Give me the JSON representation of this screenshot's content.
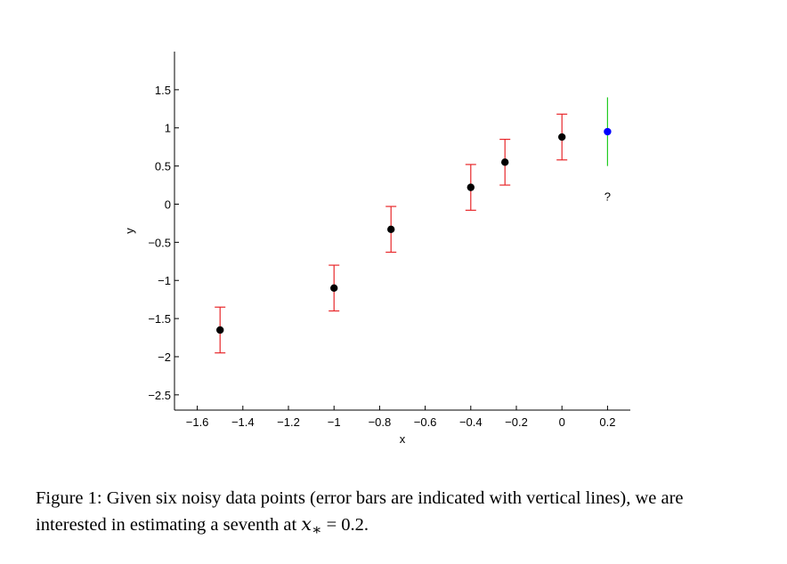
{
  "chart_data": {
    "type": "errorbar",
    "xlabel": "x",
    "ylabel": "y",
    "xlim": [
      -1.7,
      0.3
    ],
    "ylim": [
      -2.7,
      2.0
    ],
    "xticks": [
      {
        "value": -1.6,
        "label": "−1.6"
      },
      {
        "value": -1.4,
        "label": "−1.4"
      },
      {
        "value": -1.2,
        "label": "−1.2"
      },
      {
        "value": -1,
        "label": "−1"
      },
      {
        "value": -0.8,
        "label": "−0.8"
      },
      {
        "value": -0.6,
        "label": "−0.6"
      },
      {
        "value": -0.4,
        "label": "−0.4"
      },
      {
        "value": -0.2,
        "label": "−0.2"
      },
      0,
      0.2
    ],
    "yticks": [
      {
        "value": -2.5,
        "label": "−2.5"
      },
      {
        "value": -2,
        "label": "−2"
      },
      {
        "value": -1.5,
        "label": "−1.5"
      },
      {
        "value": -1,
        "label": "−1"
      },
      {
        "value": -0.5,
        "label": "−0.5"
      },
      0,
      0.5,
      1,
      1.5
    ],
    "series": [
      {
        "color": "#000000",
        "error_color": "#e8272a",
        "caps": true,
        "x": [
          -1.5,
          -1,
          -0.75,
          -0.4,
          -0.25,
          0
        ],
        "values": [
          -1.65,
          -1.1,
          -0.33,
          0.22,
          0.55,
          0.88
        ],
        "errors": [
          0.3,
          0.3,
          0.3,
          0.3,
          0.3,
          0.3
        ]
      },
      {
        "color": "#0000ff",
        "error_color": "#22cc22",
        "caps": false,
        "x": [
          0.2
        ],
        "values": [
          0.95
        ],
        "errors": [
          0.45
        ]
      }
    ],
    "annotation": "?"
  },
  "caption": {
    "text": "Figure 1: Given six noisy data points (error bars are indicated with vertical lines), we are interested in estimating a seventh at",
    "math_var": "x",
    "math_sub": "∗",
    "math_rest": "= 0.2."
  }
}
